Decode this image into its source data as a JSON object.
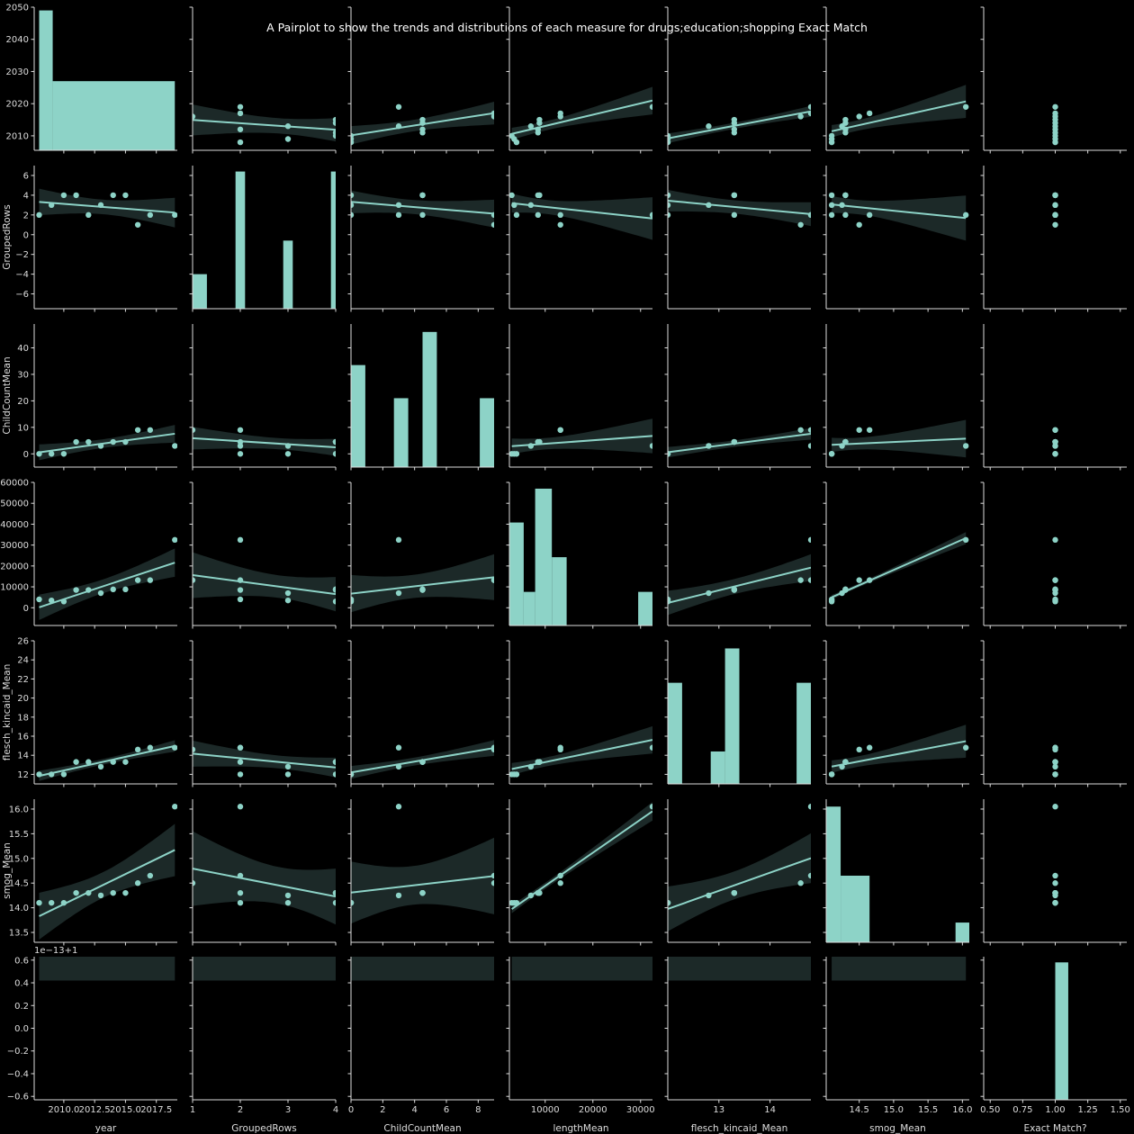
{
  "chart_data": {
    "type": "pairplot",
    "title": "A Pairplot to show the trends and distributions of each measure for drugs;education;shopping Exact Match",
    "variables": [
      "year",
      "GroupedRows",
      "ChildCountMean",
      "lengthMean",
      "flesch_kincaid_Mean",
      "smog_Mean",
      "Exact Match?"
    ],
    "xlabels": [
      "year",
      "GroupedRows",
      "ChildCountMean",
      "lengthMean",
      "flesch_kincaid_Mean",
      "smog_Mean",
      "Exact Match?"
    ],
    "ylabels": [
      "",
      "GroupedRows",
      "ChildCountMean",
      "",
      "flesch_kincaid_Mean",
      "smog_Mean",
      ""
    ],
    "offset_label": "1e−13+1",
    "colors": {
      "background": "#000000",
      "series": "#8dd3c7",
      "band": "#1c2928",
      "axis": "#dddddd"
    },
    "records": [
      {
        "year": 2008,
        "GroupedRows": 2,
        "ChildCountMean": 0,
        "lengthMean": 4000,
        "flesch_kincaid_Mean": 12.0,
        "smog_Mean": 14.1,
        "Exact Match?": 1.0
      },
      {
        "year": 2009,
        "GroupedRows": 3,
        "ChildCountMean": 0,
        "lengthMean": 3500,
        "flesch_kincaid_Mean": 12.0,
        "smog_Mean": 14.1,
        "Exact Match?": 1.0
      },
      {
        "year": 2010,
        "GroupedRows": 4,
        "ChildCountMean": 0,
        "lengthMean": 3000,
        "flesch_kincaid_Mean": 12.0,
        "smog_Mean": 14.1,
        "Exact Match?": 1.0
      },
      {
        "year": 2011,
        "GroupedRows": 4,
        "ChildCountMean": 4.5,
        "lengthMean": 8500,
        "flesch_kincaid_Mean": 13.3,
        "smog_Mean": 14.3,
        "Exact Match?": 1.0
      },
      {
        "year": 2012,
        "GroupedRows": 2,
        "ChildCountMean": 4.5,
        "lengthMean": 8500,
        "flesch_kincaid_Mean": 13.3,
        "smog_Mean": 14.3,
        "Exact Match?": 1.0
      },
      {
        "year": 2013,
        "GroupedRows": 3,
        "ChildCountMean": 3,
        "lengthMean": 7000,
        "flesch_kincaid_Mean": 12.8,
        "smog_Mean": 14.25,
        "Exact Match?": 1.0
      },
      {
        "year": 2014,
        "GroupedRows": 4,
        "ChildCountMean": 4.5,
        "lengthMean": 8800,
        "flesch_kincaid_Mean": 13.3,
        "smog_Mean": 14.3,
        "Exact Match?": 1.0
      },
      {
        "year": 2015,
        "GroupedRows": 4,
        "ChildCountMean": 4.5,
        "lengthMean": 8800,
        "flesch_kincaid_Mean": 13.3,
        "smog_Mean": 14.3,
        "Exact Match?": 1.0
      },
      {
        "year": 2016,
        "GroupedRows": 1,
        "ChildCountMean": 9,
        "lengthMean": 13200,
        "flesch_kincaid_Mean": 14.6,
        "smog_Mean": 14.5,
        "Exact Match?": 1.0
      },
      {
        "year": 2017,
        "GroupedRows": 2,
        "ChildCountMean": 9,
        "lengthMean": 13200,
        "flesch_kincaid_Mean": 14.8,
        "smog_Mean": 14.65,
        "Exact Match?": 1.0
      },
      {
        "year": 2019,
        "GroupedRows": 2,
        "ChildCountMean": 3,
        "lengthMean": 32500,
        "flesch_kincaid_Mean": 14.8,
        "smog_Mean": 16.05,
        "Exact Match?": 1.0
      }
    ],
    "axes": [
      {
        "x_lim": [
          2007.6,
          2019.2
        ],
        "x_ticks": [
          2010,
          2012.5,
          2015,
          2017.5
        ],
        "x_tick_labels": [
          "2010.0",
          "2012.5",
          "2015.0",
          "2017.5"
        ],
        "y_lim": [
          2005.5,
          2050
        ],
        "y_ticks": [
          2010,
          2020,
          2030,
          2040,
          2050
        ],
        "y_tick_labels": [
          "2010",
          "2020",
          "2030",
          "2040",
          "2050"
        ]
      },
      {
        "x_lim": [
          1,
          4
        ],
        "x_ticks": [
          1,
          2,
          3,
          4
        ],
        "x_tick_labels": [
          "1",
          "2",
          "3",
          "4"
        ],
        "y_lim": [
          -7.5,
          7
        ],
        "y_ticks": [
          -6,
          -4,
          -2,
          0,
          2,
          4,
          6
        ],
        "y_tick_labels": [
          "−6",
          "−4",
          "−2",
          "0",
          "2",
          "4",
          "6"
        ]
      },
      {
        "x_lim": [
          0,
          9
        ],
        "x_ticks": [
          0,
          2,
          4,
          6,
          8
        ],
        "x_tick_labels": [
          "0",
          "2",
          "4",
          "6",
          "8"
        ],
        "y_lim": [
          -5,
          49
        ],
        "y_ticks": [
          0,
          10,
          20,
          30,
          40
        ],
        "y_tick_labels": [
          "0",
          "10",
          "20",
          "30",
          "40"
        ]
      },
      {
        "x_lim": [
          2500,
          32500
        ],
        "x_ticks": [
          10000,
          20000,
          30000
        ],
        "x_tick_labels": [
          "10000",
          "20000",
          "30000"
        ],
        "y_lim": [
          -8500,
          60000
        ],
        "y_ticks": [
          0,
          10000,
          20000,
          30000,
          40000,
          50000,
          60000
        ],
        "y_tick_labels": [
          "0",
          "10000",
          "20000",
          "30000",
          "40000",
          "50000",
          "60000"
        ]
      },
      {
        "x_lim": [
          12.0,
          14.8
        ],
        "x_ticks": [
          13,
          14
        ],
        "x_tick_labels": [
          "13",
          "14"
        ],
        "y_lim": [
          11.0,
          26.0
        ],
        "y_ticks": [
          12,
          14,
          16,
          18,
          20,
          22,
          24,
          26
        ],
        "y_tick_labels": [
          "12",
          "14",
          "16",
          "18",
          "20",
          "22",
          "24",
          "26"
        ]
      },
      {
        "x_lim": [
          14.02,
          16.1
        ],
        "x_ticks": [
          14.5,
          15.0,
          15.5,
          16.0
        ],
        "x_tick_labels": [
          "14.5",
          "15.0",
          "15.5",
          "16.0"
        ],
        "y_lim": [
          13.3,
          16.2
        ],
        "y_ticks": [
          13.5,
          14.0,
          14.5,
          15.0,
          15.5,
          16.0
        ],
        "y_tick_labels": [
          "13.5",
          "14.0",
          "14.5",
          "15.0",
          "15.5",
          "16.0"
        ]
      },
      {
        "x_lim": [
          0.45,
          1.55
        ],
        "x_ticks": [
          0.5,
          0.75,
          1.0,
          1.25,
          1.5
        ],
        "x_tick_labels": [
          "0.50",
          "0.75",
          "1.00",
          "1.25",
          "1.50"
        ],
        "y_lim": [
          -0.63,
          0.63
        ],
        "y_ticks": [
          -0.6,
          -0.4,
          -0.2,
          0.0,
          0.2,
          0.4,
          0.6
        ],
        "y_tick_labels": [
          "−0.6",
          "−0.4",
          "−0.2",
          "0.0",
          "0.2",
          "0.4",
          "0.6"
        ]
      }
    ],
    "histograms": [
      {
        "bins": [
          2008,
          2009.1,
          2019
        ],
        "heights": [
          2049,
          2027
        ]
      },
      {
        "bins": [
          1,
          1.3,
          1.9,
          2.1,
          2.9,
          3.1,
          3.9,
          4
        ],
        "heights": [
          -4,
          -7.5,
          6.4,
          -7.5,
          -0.6,
          -7.5,
          6.4
        ]
      },
      {
        "bins": [
          0,
          0.9,
          2.7,
          3.6,
          4.5,
          5.4,
          8.1,
          9
        ],
        "heights": [
          33.5,
          -5,
          21,
          -5,
          46,
          -5,
          21
        ]
      },
      {
        "bins": [
          2500,
          5500,
          7900,
          11400,
          14500,
          29500,
          32500
        ],
        "heights": [
          40800,
          7600,
          57000,
          24200,
          -8500,
          7600
        ]
      },
      {
        "bins": [
          12.0,
          12.28,
          12.84,
          13.12,
          13.4,
          14.52,
          14.8
        ],
        "heights": [
          21.6,
          11.0,
          14.4,
          25.2,
          11.0,
          21.6
        ]
      },
      {
        "bins": [
          14.02,
          14.23,
          14.65,
          15.9,
          16.1
        ],
        "heights": [
          16.05,
          14.65,
          13.3,
          13.7
        ]
      },
      {
        "bins": [
          0.45,
          1.0,
          1.1,
          1.55
        ],
        "heights": [
          -0.63,
          0.58,
          -0.63
        ]
      }
    ],
    "diag_line_fits": {
      "00": null
    }
  }
}
